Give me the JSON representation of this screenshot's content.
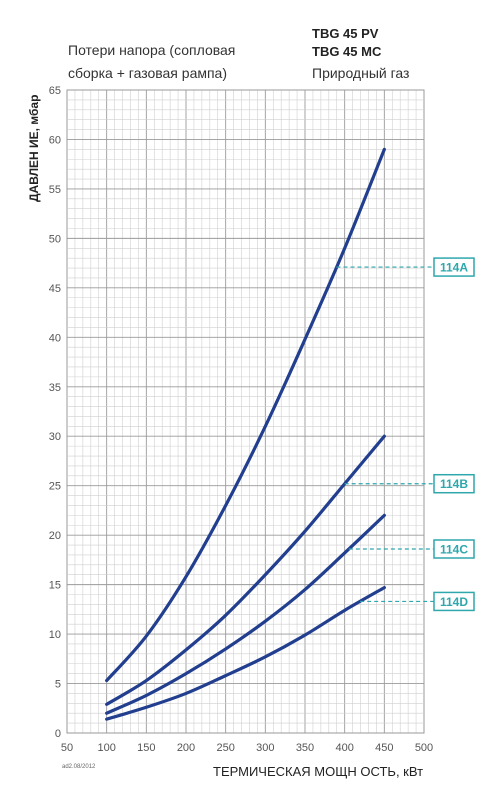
{
  "header": {
    "model_1": "TBG 45 PV",
    "model_2": "TBG 45 MC",
    "gas_type": "Природный газ",
    "description_line1": "Потери напора (сопловая",
    "description_line2": "сборка + газовая рампа)"
  },
  "note": "ad2.08/2012",
  "colors": {
    "curve": "#223f8f",
    "grid": "#9a9a9a",
    "grid_minor": "#cfcfcf",
    "callout": "#2ea7ad"
  },
  "chart_data": {
    "type": "line",
    "xlabel": "ТЕРМИЧЕСКАЯ МОЩН ОСТЬ, кВт",
    "ylabel": "ДАВЛЕН ИЕ, мбар",
    "xlim": [
      50,
      500
    ],
    "ylim": [
      0,
      65
    ],
    "xticks": [
      50,
      100,
      150,
      200,
      250,
      300,
      350,
      400,
      450,
      500
    ],
    "yticks": [
      0,
      5,
      10,
      15,
      20,
      25,
      30,
      35,
      40,
      45,
      50,
      55,
      60,
      65
    ],
    "grid": true,
    "series": [
      {
        "name": "114A",
        "x": [
          100,
          150,
          200,
          250,
          300,
          350,
          400,
          450
        ],
        "y": [
          5.3,
          9.8,
          15.8,
          23,
          31,
          39.8,
          49,
          59
        ],
        "label_y": 47.1
      },
      {
        "name": "114B",
        "x": [
          100,
          150,
          200,
          250,
          300,
          350,
          400,
          450
        ],
        "y": [
          2.9,
          5.3,
          8.4,
          11.9,
          16.0,
          20.4,
          25.2,
          30.0
        ],
        "label_y": 25.2
      },
      {
        "name": "114C",
        "x": [
          100,
          150,
          200,
          250,
          300,
          350,
          400,
          450
        ],
        "y": [
          2.0,
          3.8,
          6.0,
          8.5,
          11.3,
          14.5,
          18.2,
          22.0
        ],
        "label_y": 18.6
      },
      {
        "name": "114D",
        "x": [
          100,
          150,
          200,
          250,
          300,
          350,
          400,
          450
        ],
        "y": [
          1.4,
          2.6,
          4.0,
          5.8,
          7.7,
          9.9,
          12.4,
          14.7
        ],
        "label_y": 13.3
      }
    ]
  }
}
